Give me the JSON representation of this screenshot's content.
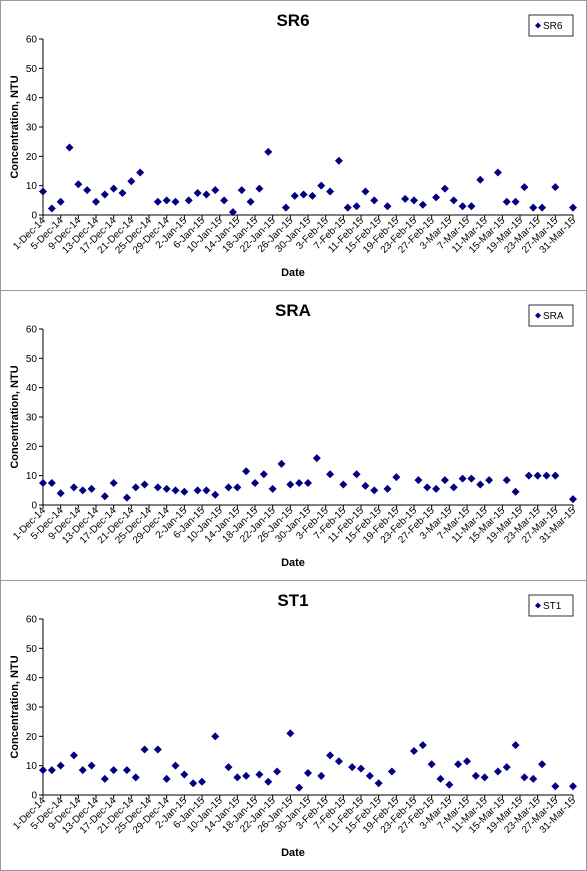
{
  "chart_data": [
    {
      "type": "scatter",
      "title": "SR6",
      "xlabel": "Date",
      "ylabel": "Concentration, NTU",
      "ylim": [
        0,
        60
      ],
      "yticks": [
        0,
        10,
        20,
        30,
        40,
        50,
        60
      ],
      "grid": false,
      "legend_position": "top-right",
      "xlim": [
        "2014-12-01",
        "2015-03-31"
      ],
      "xtick_labels": [
        "1-Dec-14",
        "5-Dec-14",
        "9-Dec-14",
        "13-Dec-14",
        "17-Dec-14",
        "21-Dec-14",
        "25-Dec-14",
        "29-Dec-14",
        "2-Jan-15",
        "6-Jan-15",
        "10-Jan-15",
        "14-Jan-15",
        "18-Jan-15",
        "22-Jan-15",
        "26-Jan-15",
        "30-Jan-15",
        "3-Feb-15",
        "7-Feb-15",
        "11-Feb-15",
        "15-Feb-15",
        "19-Feb-15",
        "23-Feb-15",
        "27-Feb-15",
        "3-Mar-15",
        "7-Mar-15",
        "11-Mar-15",
        "15-Mar-15",
        "19-Mar-15",
        "23-Mar-15",
        "27-Mar-15",
        "31-Mar-15"
      ],
      "series": [
        {
          "name": "SR6",
          "color": "#000080",
          "marker": "diamond",
          "x": [
            "2014-12-01",
            "2014-12-03",
            "2014-12-05",
            "2014-12-07",
            "2014-12-09",
            "2014-12-11",
            "2014-12-13",
            "2014-12-15",
            "2014-12-17",
            "2014-12-19",
            "2014-12-21",
            "2014-12-23",
            "2014-12-27",
            "2014-12-29",
            "2014-12-31",
            "2015-01-03",
            "2015-01-05",
            "2015-01-07",
            "2015-01-09",
            "2015-01-11",
            "2015-01-13",
            "2015-01-15",
            "2015-01-17",
            "2015-01-19",
            "2015-01-21",
            "2015-01-25",
            "2015-01-27",
            "2015-01-29",
            "2015-01-31",
            "2015-02-02",
            "2015-02-04",
            "2015-02-06",
            "2015-02-08",
            "2015-02-10",
            "2015-02-12",
            "2015-02-14",
            "2015-02-17",
            "2015-02-21",
            "2015-02-23",
            "2015-02-25",
            "2015-02-28",
            "2015-03-02",
            "2015-03-04",
            "2015-03-06",
            "2015-03-08",
            "2015-03-10",
            "2015-03-14",
            "2015-03-16",
            "2015-03-18",
            "2015-03-20",
            "2015-03-22",
            "2015-03-24",
            "2015-03-27",
            "2015-03-31"
          ],
          "y": [
            8,
            2.2,
            4.5,
            23,
            10.5,
            8.5,
            4.5,
            7,
            9,
            7.5,
            11.5,
            14.5,
            4.5,
            5,
            4.5,
            5,
            7.5,
            7,
            8.5,
            5,
            1,
            8.5,
            4.5,
            9,
            21.5,
            2.5,
            6.5,
            7,
            6.5,
            10,
            8,
            18.5,
            2.5,
            3,
            8,
            5,
            3,
            5.5,
            5,
            3.5,
            6,
            9,
            5,
            3,
            3,
            12,
            14.5,
            4.5,
            4.5,
            9.5,
            2.5,
            2.5,
            9.5,
            2.5
          ]
        }
      ]
    },
    {
      "type": "scatter",
      "title": "SRA",
      "xlabel": "Date",
      "ylabel": "Concentration, NTU",
      "ylim": [
        0,
        60
      ],
      "yticks": [
        0,
        10,
        20,
        30,
        40,
        50,
        60
      ],
      "grid": false,
      "legend_position": "top-right",
      "xlim": [
        "2014-12-01",
        "2015-03-31"
      ],
      "xtick_labels": [
        "1-Dec-14",
        "5-Dec-14",
        "9-Dec-14",
        "13-Dec-14",
        "17-Dec-14",
        "21-Dec-14",
        "25-Dec-14",
        "29-Dec-14",
        "2-Jan-15",
        "6-Jan-15",
        "10-Jan-15",
        "14-Jan-15",
        "18-Jan-15",
        "22-Jan-15",
        "26-Jan-15",
        "30-Jan-15",
        "3-Feb-15",
        "7-Feb-15",
        "11-Feb-15",
        "15-Feb-15",
        "19-Feb-15",
        "23-Feb-15",
        "27-Feb-15",
        "3-Mar-15",
        "7-Mar-15",
        "11-Mar-15",
        "15-Mar-15",
        "19-Mar-15",
        "23-Mar-15",
        "27-Mar-15",
        "31-Mar-15"
      ],
      "series": [
        {
          "name": "SRA",
          "color": "#000080",
          "marker": "diamond",
          "x": [
            "2014-12-01",
            "2014-12-03",
            "2014-12-05",
            "2014-12-08",
            "2014-12-10",
            "2014-12-12",
            "2014-12-15",
            "2014-12-17",
            "2014-12-20",
            "2014-12-22",
            "2014-12-24",
            "2014-12-27",
            "2014-12-29",
            "2014-12-31",
            "2015-01-02",
            "2015-01-05",
            "2015-01-07",
            "2015-01-09",
            "2015-01-12",
            "2015-01-14",
            "2015-01-16",
            "2015-01-18",
            "2015-01-20",
            "2015-01-22",
            "2015-01-24",
            "2015-01-26",
            "2015-01-28",
            "2015-01-30",
            "2015-02-01",
            "2015-02-04",
            "2015-02-07",
            "2015-02-10",
            "2015-02-12",
            "2015-02-14",
            "2015-02-17",
            "2015-02-19",
            "2015-02-24",
            "2015-02-26",
            "2015-02-28",
            "2015-03-02",
            "2015-03-04",
            "2015-03-06",
            "2015-03-08",
            "2015-03-10",
            "2015-03-12",
            "2015-03-16",
            "2015-03-18",
            "2015-03-21",
            "2015-03-23",
            "2015-03-25",
            "2015-03-27",
            "2015-03-31"
          ],
          "y": [
            7.5,
            7.5,
            4,
            6,
            5,
            5.5,
            3,
            7.5,
            2.5,
            6,
            7,
            6,
            5.5,
            5,
            4.5,
            5,
            5,
            3.5,
            6,
            6,
            11.5,
            7.5,
            10.5,
            5.5,
            14,
            7,
            7.5,
            7.5,
            16,
            10.5,
            7,
            10.5,
            6.5,
            5,
            5.5,
            9.5,
            8.5,
            6,
            5.5,
            8.5,
            6,
            9,
            9,
            7,
            8.5,
            8.5,
            4.5,
            10,
            10,
            10,
            10,
            2
          ]
        }
      ]
    },
    {
      "type": "scatter",
      "title": "ST1",
      "xlabel": "Date",
      "ylabel": "Concentration, NTU",
      "ylim": [
        0,
        60
      ],
      "yticks": [
        0,
        10,
        20,
        30,
        40,
        50,
        60
      ],
      "grid": false,
      "legend_position": "top-right",
      "xlim": [
        "2014-12-01",
        "2015-03-31"
      ],
      "xtick_labels": [
        "1-Dec-14",
        "5-Dec-14",
        "9-Dec-14",
        "13-Dec-14",
        "17-Dec-14",
        "21-Dec-14",
        "25-Dec-14",
        "29-Dec-14",
        "2-Jan-15",
        "6-Jan-15",
        "10-Jan-15",
        "14-Jan-15",
        "18-Jan-15",
        "22-Jan-15",
        "26-Jan-15",
        "30-Jan-15",
        "3-Feb-15",
        "7-Feb-15",
        "11-Feb-15",
        "15-Feb-15",
        "19-Feb-15",
        "23-Feb-15",
        "27-Feb-15",
        "3-Mar-15",
        "7-Mar-15",
        "11-Mar-15",
        "15-Mar-15",
        "19-Mar-15",
        "23-Mar-15",
        "27-Mar-15",
        "31-Mar-15"
      ],
      "series": [
        {
          "name": "ST1",
          "color": "#000080",
          "marker": "diamond",
          "x": [
            "2014-12-01",
            "2014-12-03",
            "2014-12-05",
            "2014-12-08",
            "2014-12-10",
            "2014-12-12",
            "2014-12-15",
            "2014-12-17",
            "2014-12-20",
            "2014-12-22",
            "2014-12-24",
            "2014-12-27",
            "2014-12-29",
            "2014-12-31",
            "2015-01-02",
            "2015-01-04",
            "2015-01-06",
            "2015-01-09",
            "2015-01-12",
            "2015-01-14",
            "2015-01-16",
            "2015-01-19",
            "2015-01-21",
            "2015-01-23",
            "2015-01-26",
            "2015-01-28",
            "2015-01-30",
            "2015-02-02",
            "2015-02-04",
            "2015-02-06",
            "2015-02-09",
            "2015-02-11",
            "2015-02-13",
            "2015-02-15",
            "2015-02-18",
            "2015-02-23",
            "2015-02-25",
            "2015-02-27",
            "2015-03-01",
            "2015-03-03",
            "2015-03-05",
            "2015-03-07",
            "2015-03-09",
            "2015-03-11",
            "2015-03-14",
            "2015-03-16",
            "2015-03-18",
            "2015-03-20",
            "2015-03-22",
            "2015-03-24",
            "2015-03-27",
            "2015-03-31"
          ],
          "y": [
            8.5,
            8.5,
            10,
            13.5,
            8.5,
            10,
            5.5,
            8.5,
            8.5,
            6,
            15.5,
            15.5,
            5.5,
            10,
            7,
            4,
            4.5,
            20,
            9.5,
            6,
            6.5,
            7,
            4.5,
            8,
            21,
            2.5,
            7.5,
            6.5,
            13.5,
            11.5,
            9.5,
            9,
            6.5,
            4,
            8,
            15,
            17,
            10.5,
            5.5,
            3.5,
            10.5,
            11.5,
            6.5,
            6,
            8,
            9.5,
            17,
            6,
            5.5,
            10.5,
            3,
            3
          ]
        }
      ]
    }
  ]
}
